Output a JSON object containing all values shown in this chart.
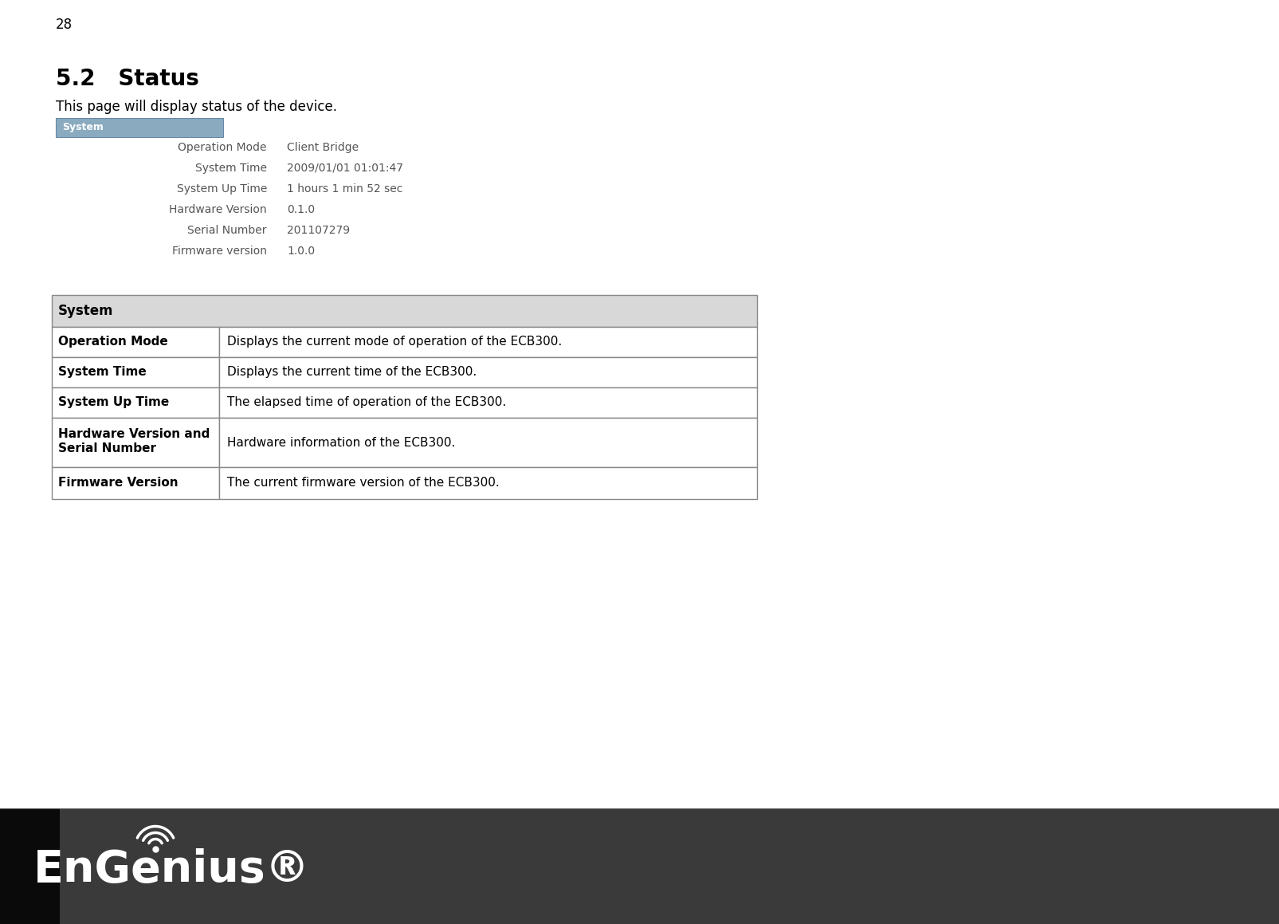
{
  "page_number": "28",
  "section_title": "5.2   Status",
  "intro_text": "This page will display status of the device.",
  "screenshot_tab_label": "System",
  "screenshot_tab_bg": "#8aabbf",
  "screenshot_tab_text": "#ffffff",
  "screenshot_rows": [
    {
      "label": "Operation Mode",
      "value": "Client Bridge"
    },
    {
      "label": "System Time",
      "value": "2009/01/01 01:01:47"
    },
    {
      "label": "System Up Time",
      "value": "1 hours 1 min 52 sec"
    },
    {
      "label": "Hardware Version",
      "value": "0.1.0"
    },
    {
      "label": "Serial Number",
      "value": "201107279"
    },
    {
      "label": "Firmware version",
      "value": "1.0.0"
    }
  ],
  "table_header": "System",
  "table_header_bg": "#d8d8d8",
  "table_border_color": "#888888",
  "table_rows": [
    {
      "label": "Operation Mode",
      "desc": "Displays the current mode of operation of the ECB300."
    },
    {
      "label": "System Time",
      "desc": "Displays the current time of the ECB300."
    },
    {
      "label": "System Up Time",
      "desc": "The elapsed time of operation of the ECB300."
    },
    {
      "label": "Hardware Version and\nSerial Number",
      "desc": "Hardware information of the ECB300."
    },
    {
      "label": "Firmware Version",
      "desc": "The current firmware version of the ECB300."
    }
  ],
  "footer_bg_left": "#111111",
  "footer_bg_right": "#555555",
  "footer_logo_text": "EnGenius",
  "background_color": "#ffffff",
  "page_num_fontsize": 12,
  "section_title_fontsize": 20,
  "body_fontsize": 12,
  "screenshot_fontsize": 10,
  "table_fontsize": 11
}
